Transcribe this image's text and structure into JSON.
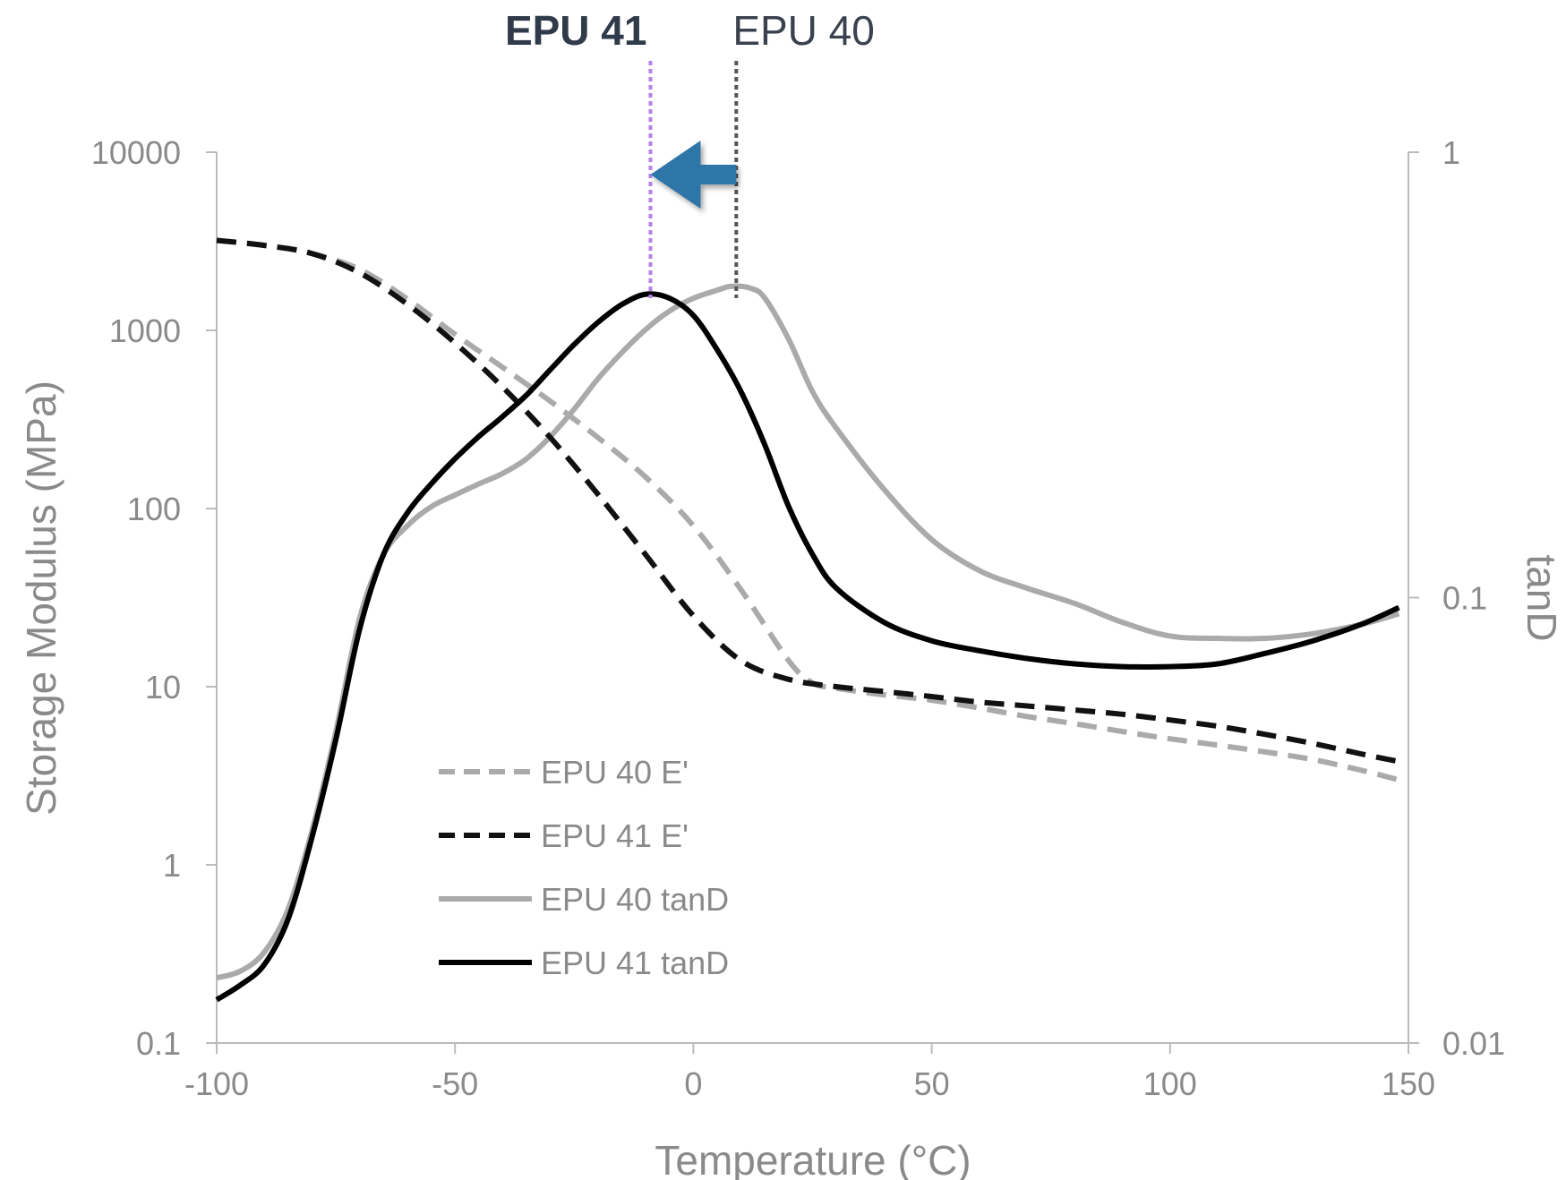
{
  "chart_data": {
    "type": "line",
    "xlabel": "Temperature (°C)",
    "ylabel": "Storage Modulus (MPa)",
    "y2label": "tanD",
    "xlim": [
      -100,
      150
    ],
    "ylim": [
      0.1,
      10000
    ],
    "y2lim": [
      0.01,
      1
    ],
    "yscale": "log",
    "y2scale": "log",
    "grid": false,
    "legend_position": "lower-left",
    "x_ticks": [
      "-100",
      "-50",
      "0",
      "50",
      "100",
      "150"
    ],
    "y_ticks": [
      "0.1",
      "1",
      "10",
      "100",
      "1000",
      "10000"
    ],
    "y2_ticks": [
      "0.01",
      "0.1",
      "1"
    ],
    "series": [
      {
        "name": "EPU 40 E'",
        "axis": "left",
        "style": "dashed",
        "color": "#aaaaaa",
        "x": [
          -100,
          -90,
          -80,
          -70,
          -60,
          -50,
          -40,
          -30,
          -20,
          -10,
          0,
          10,
          20,
          25,
          30,
          40,
          50,
          60,
          70,
          80,
          90,
          100,
          110,
          120,
          130,
          140,
          148
        ],
        "y": [
          3200,
          3000,
          2700,
          2200,
          1500,
          950,
          620,
          400,
          250,
          150,
          80,
          35,
          14,
          10.5,
          9.8,
          9.0,
          8.4,
          7.6,
          6.8,
          6.2,
          5.6,
          5.1,
          4.7,
          4.3,
          3.9,
          3.4,
          3.0
        ]
      },
      {
        "name": "EPU 41 E'",
        "axis": "left",
        "style": "dashed",
        "color": "#111111",
        "x": [
          -100,
          -90,
          -80,
          -70,
          -60,
          -50,
          -40,
          -30,
          -20,
          -10,
          0,
          10,
          20,
          30,
          40,
          50,
          60,
          70,
          80,
          90,
          100,
          110,
          120,
          130,
          140,
          148
        ],
        "y": [
          3200,
          3000,
          2700,
          2100,
          1400,
          850,
          480,
          250,
          120,
          55,
          25,
          14,
          11,
          10,
          9.4,
          8.8,
          8.2,
          7.8,
          7.4,
          7.0,
          6.5,
          6.0,
          5.4,
          4.8,
          4.2,
          3.8
        ]
      },
      {
        "name": "EPU 40 tanD",
        "axis": "right",
        "style": "solid",
        "color": "#aaaaaa",
        "x": [
          -100,
          -95,
          -90,
          -85,
          -80,
          -75,
          -70,
          -65,
          -60,
          -55,
          -50,
          -45,
          -40,
          -35,
          -30,
          -25,
          -20,
          -15,
          -10,
          -5,
          0,
          5,
          8,
          12,
          15,
          20,
          25,
          30,
          40,
          50,
          60,
          70,
          80,
          90,
          100,
          110,
          120,
          130,
          140,
          148
        ],
        "y": [
          0.014,
          0.0145,
          0.016,
          0.02,
          0.03,
          0.05,
          0.09,
          0.125,
          0.145,
          0.16,
          0.17,
          0.18,
          0.19,
          0.205,
          0.23,
          0.265,
          0.31,
          0.355,
          0.4,
          0.44,
          0.47,
          0.49,
          0.5,
          0.495,
          0.47,
          0.38,
          0.29,
          0.24,
          0.175,
          0.135,
          0.115,
          0.105,
          0.097,
          0.088,
          0.082,
          0.081,
          0.081,
          0.083,
          0.087,
          0.092
        ]
      },
      {
        "name": "EPU 41 tanD",
        "axis": "right",
        "style": "solid",
        "color": "#000000",
        "x": [
          -100,
          -95,
          -90,
          -85,
          -80,
          -75,
          -70,
          -65,
          -60,
          -55,
          -50,
          -45,
          -40,
          -35,
          -30,
          -25,
          -20,
          -15,
          -10,
          -5,
          0,
          5,
          10,
          15,
          20,
          25,
          30,
          40,
          50,
          60,
          70,
          80,
          90,
          100,
          110,
          120,
          130,
          140,
          148
        ],
        "y": [
          0.0125,
          0.0135,
          0.015,
          0.019,
          0.029,
          0.048,
          0.085,
          0.125,
          0.155,
          0.18,
          0.205,
          0.23,
          0.255,
          0.285,
          0.325,
          0.37,
          0.415,
          0.455,
          0.48,
          0.47,
          0.43,
          0.36,
          0.29,
          0.22,
          0.16,
          0.125,
          0.105,
          0.088,
          0.08,
          0.076,
          0.073,
          0.071,
          0.07,
          0.07,
          0.071,
          0.075,
          0.08,
          0.087,
          0.095
        ]
      }
    ],
    "annotations": [
      {
        "text": "EPU 41",
        "x": -9,
        "weight": "bold",
        "line_color": "#b77ee8"
      },
      {
        "text": "EPU 40",
        "x": 9,
        "weight": "normal",
        "line_color": "#555555"
      }
    ],
    "arrow": {
      "from_x": 9,
      "to_x": -9,
      "color": "#2e75a8"
    }
  }
}
